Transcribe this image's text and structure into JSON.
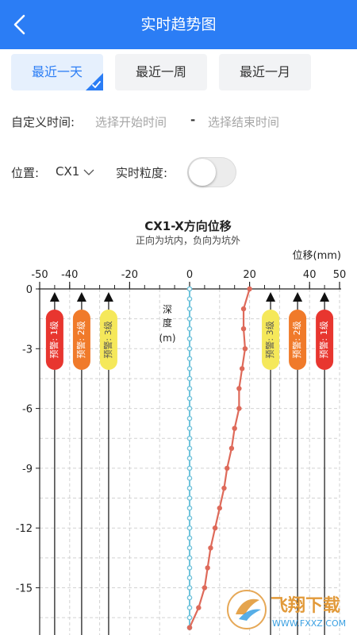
{
  "header": {
    "title": "实时趋势图",
    "back_icon": "chevron-left-icon",
    "bg": "#2b7df5"
  },
  "tabs": [
    {
      "label": "最近一天",
      "active": true
    },
    {
      "label": "最近一周",
      "active": false
    },
    {
      "label": "最近一月",
      "active": false
    }
  ],
  "custom_time": {
    "label": "自定义时间:",
    "start_placeholder": "选择开始时间",
    "separator": "-",
    "end_placeholder": "选择结束时间"
  },
  "position": {
    "label": "位置:",
    "value": "CX1"
  },
  "granularity": {
    "label": "实时粒度:",
    "enabled": false
  },
  "watermark": {
    "text": "飞翔下载",
    "url": "WWW.FXXZ.COM"
  },
  "chart_data": {
    "type": "line",
    "title": "CX1-X方向位移",
    "subtitle": "正向为坑内，负向为坑外",
    "xlabel": "位移(mm)",
    "ylabel": "深度(m)",
    "x_ticks": [
      -50,
      -40,
      -20,
      0,
      20,
      40,
      50
    ],
    "y_ticks": [
      0,
      -3,
      -6,
      -9,
      -12,
      -15
    ],
    "xlim": [
      -50,
      50
    ],
    "ylim": [
      -17,
      0
    ],
    "grid": true,
    "colors": {
      "displacement": "#de6a5a",
      "baseline": "#6fc3dc",
      "level1": "#e8362f",
      "level2": "#f07a2a",
      "level3": "#f5e85a"
    },
    "series": [
      {
        "depth": [
          0,
          -1,
          -2,
          -3,
          -4,
          -5,
          -6,
          -7,
          -8,
          -9,
          -10,
          -11,
          -12,
          -13,
          -14,
          -15,
          -16,
          -17
        ],
        "values": [
          20,
          18,
          18,
          18.5,
          17.5,
          16.5,
          16.5,
          15,
          14,
          12.5,
          11.5,
          10,
          8.5,
          7,
          6,
          5,
          3,
          0
        ]
      },
      {
        "depth": [
          0,
          -0.5,
          -1,
          -1.5,
          -2,
          -2.5,
          -3,
          -3.5,
          -4,
          -4.5,
          -5,
          -5.5,
          -6,
          -6.5,
          -7,
          -7.5,
          -8,
          -8.5,
          -9,
          -9.5,
          -10,
          -10.5,
          -11,
          -11.5,
          -12,
          -12.5,
          -13,
          -13.5,
          -14,
          -14.5,
          -15,
          -15.5,
          -16,
          -16.5,
          -17
        ],
        "values": [
          0,
          0,
          0,
          0,
          0,
          0,
          0,
          0,
          0,
          0,
          0,
          0,
          0,
          0,
          0,
          0,
          0,
          0,
          0,
          0,
          0,
          0,
          0,
          0,
          0,
          0,
          0,
          0,
          0,
          0,
          0,
          0,
          0,
          0,
          0
        ]
      }
    ],
    "warnings": [
      {
        "value": -45,
        "label": "预警: 1级",
        "level": 1
      },
      {
        "value": -36,
        "label": "预警: 2级",
        "level": 2
      },
      {
        "value": -27,
        "label": "预警: 3级",
        "level": 3
      },
      {
        "value": 27,
        "label": "预警: 3级",
        "level": 3
      },
      {
        "value": 36,
        "label": "预警: 2级",
        "level": 2
      },
      {
        "value": 45,
        "label": "预警: 1级",
        "level": 1
      }
    ]
  }
}
